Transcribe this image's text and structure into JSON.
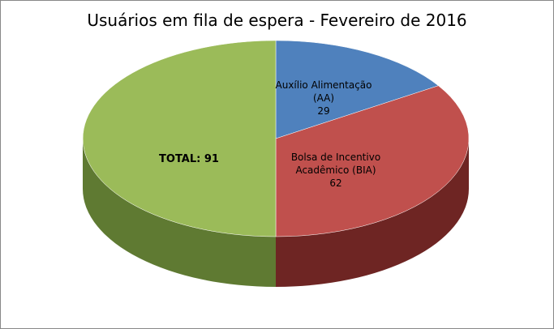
{
  "chart_data": {
    "type": "pie3d",
    "title": "Usuários em fila de espera - Fevereiro de 2016",
    "categories": [
      "Auxílio Alimentação (AA)",
      "Bolsa de Incentivo Acadêmico (BIA)",
      null
    ],
    "values": [
      29,
      62,
      91
    ],
    "value_labels": [
      "29",
      "62",
      "TOTAL: 91"
    ],
    "colors": [
      "#4f81bd",
      "#c0504d",
      "#9bbb59"
    ],
    "side_colors": [
      "#2f4f7a",
      "#6e2523",
      "#5f7a32"
    ]
  }
}
